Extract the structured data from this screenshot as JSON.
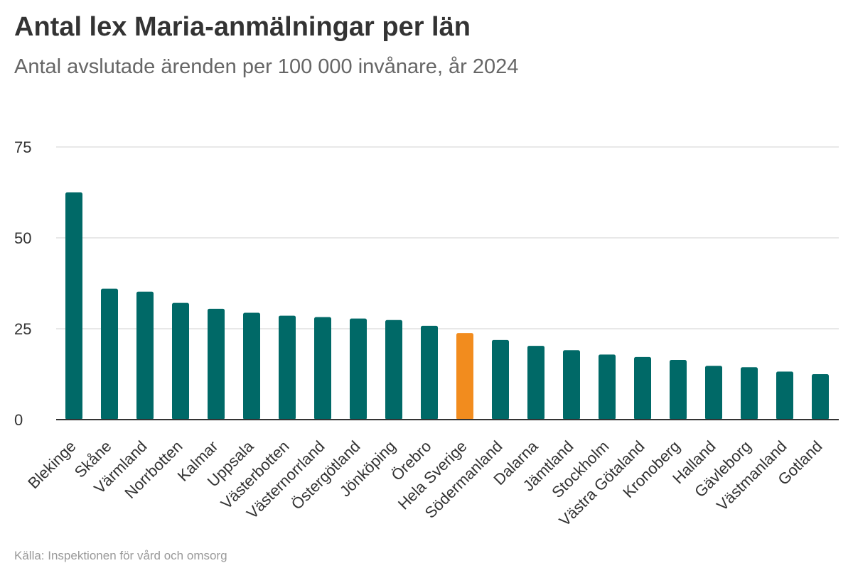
{
  "title": "Antal lex Maria-anmälningar per län",
  "subtitle": "Antal avslutade ärenden per 100 000 invånare, år 2024",
  "source": "Källa: Inspektionen för vård och omsorg",
  "colors": {
    "bar": "#006967",
    "highlight": "#f28c1e",
    "grid": "#e0e0e0",
    "axis": "#333333"
  },
  "chart_data": {
    "type": "bar",
    "title": "Antal lex Maria-anmälningar per län",
    "subtitle": "Antal avslutade ärenden per 100 000 invånare, år 2024",
    "xlabel": "",
    "ylabel": "",
    "ylim": [
      0,
      75
    ],
    "yticks": [
      0,
      25,
      50,
      75
    ],
    "grid": true,
    "legend": "none",
    "highlight_category": "Hela Sverige",
    "categories": [
      "Blekinge",
      "Skåne",
      "Värmland",
      "Norrbotten",
      "Kalmar",
      "Uppsala",
      "Västerbotten",
      "Västernorrland",
      "Östergötland",
      "Jönköping",
      "Örebro",
      "Hela Sverige",
      "Södermanland",
      "Dalarna",
      "Jämtland",
      "Stockholm",
      "Västra Götaland",
      "Kronoberg",
      "Halland",
      "Gävleborg",
      "Västmanland",
      "Gotland"
    ],
    "values": [
      62.5,
      36,
      35.2,
      32.1,
      30.5,
      29.4,
      28.6,
      28.2,
      27.8,
      27.4,
      25.8,
      23.8,
      21.9,
      20.3,
      19.1,
      17.9,
      17.2,
      16.4,
      14.8,
      14.4,
      13.2,
      12.5
    ]
  }
}
